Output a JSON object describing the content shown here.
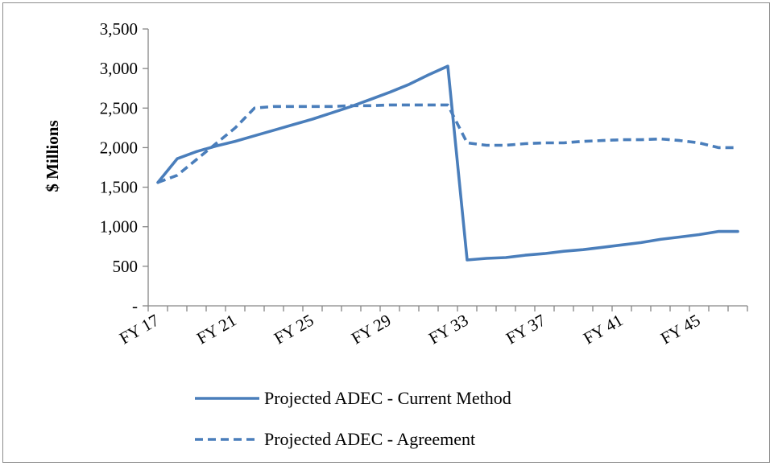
{
  "chart_data": {
    "type": "line",
    "title": "",
    "xlabel": "",
    "ylabel": "$ Millions",
    "ylim": [
      0,
      3500
    ],
    "yticks": [
      0,
      500,
      1000,
      1500,
      2000,
      2500,
      3000,
      3500
    ],
    "ytick_labels": [
      "-",
      "500",
      "1,000",
      "1,500",
      "2,000",
      "2,500",
      "3,000",
      "3,500"
    ],
    "x": [
      "FY 17",
      "FY 18",
      "FY 19",
      "FY 20",
      "FY 21",
      "FY 22",
      "FY 23",
      "FY 24",
      "FY 25",
      "FY 26",
      "FY 27",
      "FY 28",
      "FY 29",
      "FY 30",
      "FY 31",
      "FY 32",
      "FY 33",
      "FY 34",
      "FY 35",
      "FY 36",
      "FY 37",
      "FY 38",
      "FY 39",
      "FY 40",
      "FY 41",
      "FY 42",
      "FY 43",
      "FY 44",
      "FY 45",
      "FY 46",
      "FY 47"
    ],
    "xtick_labels": [
      "FY 17",
      "FY 21",
      "FY 25",
      "FY 29",
      "FY 33",
      "FY 37",
      "FY 41",
      "FY 45"
    ],
    "grid": false,
    "legend_position": "bottom",
    "series": [
      {
        "name": "Projected ADEC - Current Method",
        "style": "solid",
        "color": "#4a7ebb",
        "values": [
          1560,
          1860,
          1950,
          2020,
          2080,
          2150,
          2220,
          2290,
          2360,
          2440,
          2520,
          2610,
          2700,
          2800,
          2920,
          3030,
          580,
          600,
          610,
          640,
          660,
          690,
          710,
          740,
          770,
          800,
          840,
          870,
          900,
          940,
          940
        ]
      },
      {
        "name": "Projected ADEC - Agreement",
        "style": "dashed",
        "color": "#4a7ebb",
        "values": [
          1560,
          1650,
          1850,
          2050,
          2250,
          2500,
          2520,
          2520,
          2520,
          2520,
          2530,
          2530,
          2540,
          2540,
          2540,
          2540,
          2060,
          2030,
          2030,
          2050,
          2060,
          2060,
          2080,
          2090,
          2100,
          2100,
          2110,
          2090,
          2060,
          2000,
          2000
        ]
      }
    ]
  }
}
